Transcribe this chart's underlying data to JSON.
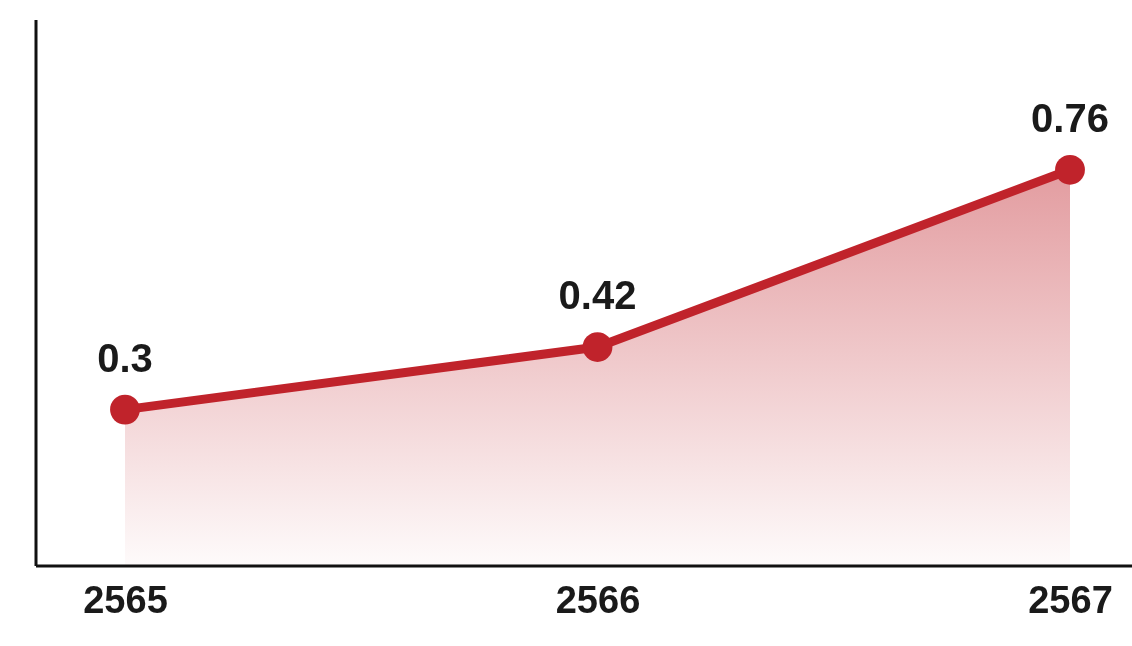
{
  "chart_data": {
    "type": "area",
    "categories": [
      "2565",
      "2566",
      "2567"
    ],
    "series": [
      {
        "color": "#c0232b",
        "values": [
          0.3,
          0.42,
          0.76
        ]
      }
    ],
    "data_labels": true,
    "marker": "circle"
  }
}
